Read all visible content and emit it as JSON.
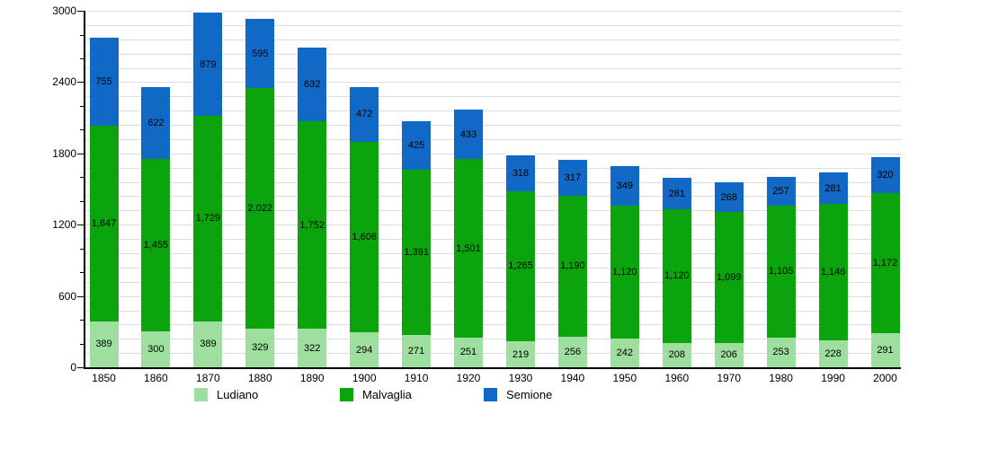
{
  "chart_data": {
    "type": "bar",
    "stacked": true,
    "title": "",
    "xlabel": "",
    "ylabel": "",
    "categories": [
      "1850",
      "1860",
      "1870",
      "1880",
      "1890",
      "1900",
      "1910",
      "1920",
      "1930",
      "1940",
      "1950",
      "1960",
      "1970",
      "1980",
      "1990",
      "2000"
    ],
    "series": [
      {
        "name": "Ludiano",
        "color": "#9EDE9E",
        "values": [
          389,
          300,
          389,
          329,
          322,
          294,
          271,
          251,
          219,
          256,
          242,
          208,
          206,
          253,
          228,
          291
        ]
      },
      {
        "name": "Malvaglia",
        "color": "#0CA40C",
        "values": [
          1647,
          1455,
          1729,
          2022,
          1752,
          1606,
          1391,
          1501,
          1265,
          1190,
          1120,
          1120,
          1099,
          1105,
          1146,
          1172
        ]
      },
      {
        "name": "Semione",
        "color": "#1269C5",
        "values": [
          755,
          622,
          879,
          595,
          632,
          472,
          425,
          433,
          318,
          317,
          349,
          281,
          268,
          257,
          281,
          320
        ]
      }
    ],
    "ylim": [
      0,
      3000
    ],
    "yticks": [
      0,
      600,
      1200,
      1800,
      2400,
      3000
    ],
    "minor_tick_interval": 200,
    "grid_interval": 120,
    "grid": true,
    "legend_position": "bottom",
    "colors": {
      "background": "#FFFFFF",
      "gridline": "#DCDCDC",
      "axis": "#000000",
      "text": "#000000"
    }
  }
}
